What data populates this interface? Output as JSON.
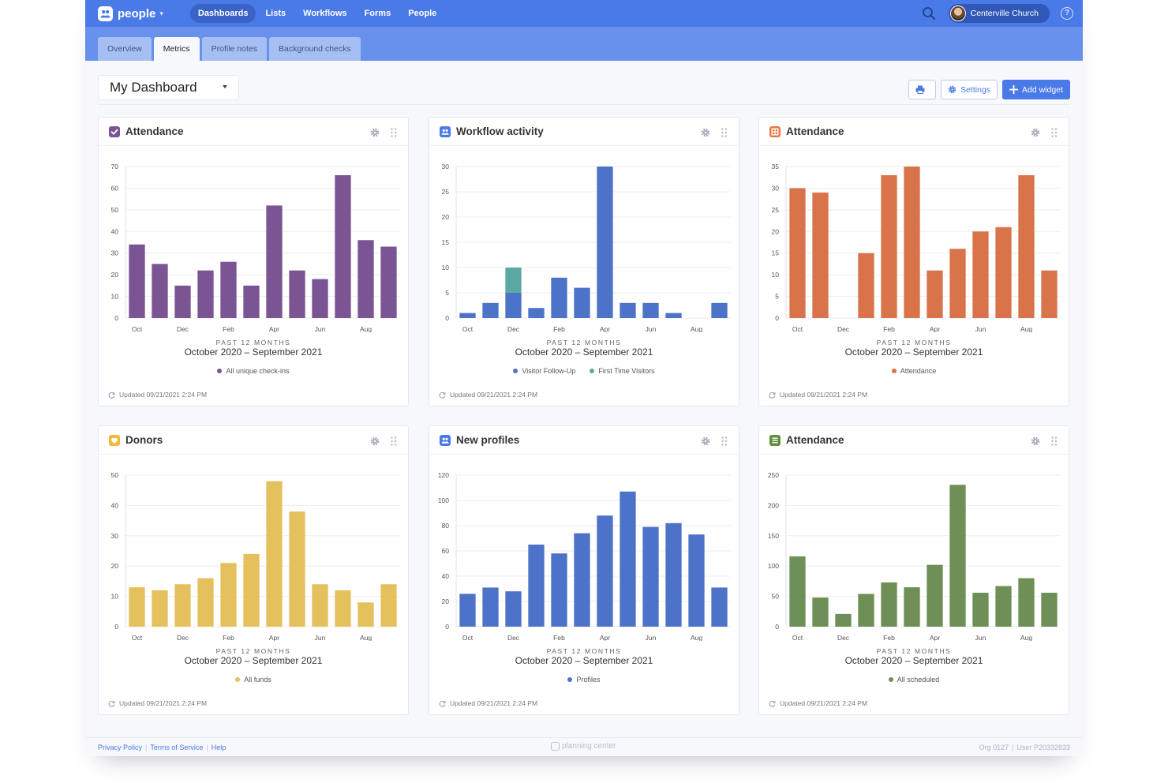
{
  "app": {
    "brand": "people",
    "nav": [
      "Dashboards",
      "Lists",
      "Workflows",
      "Forms",
      "People"
    ],
    "active_nav": 0,
    "org_name": "Centerville Church",
    "help_label": "?"
  },
  "subtabs": {
    "items": [
      "Overview",
      "Metrics",
      "Profile notes",
      "Background checks"
    ],
    "active": 1
  },
  "dashboard": {
    "title": "My Dashboard",
    "settings_label": "Settings",
    "add_widget_label": "Add widget"
  },
  "widgets": [
    {
      "title": "Attendance",
      "icon": "checkbox-icon",
      "period_label": "PAST 12 MONTHS",
      "range": "October 2020 – September 2021",
      "updated": "Updated 09/21/2021 2:24 PM",
      "legend": [
        {
          "label": "All unique check-ins",
          "color": "#7a5493"
        }
      ],
      "chart_data": {
        "type": "bar",
        "categories": [
          "Oct",
          "Nov",
          "Dec",
          "Jan",
          "Feb",
          "Mar",
          "Apr",
          "May",
          "Jun",
          "Jul",
          "Aug",
          "Sep"
        ],
        "tick_labels": [
          "Oct",
          "",
          "Dec",
          "",
          "Feb",
          "",
          "Apr",
          "",
          "Jun",
          "",
          "Aug",
          ""
        ],
        "ylim": [
          0,
          70
        ],
        "yticks": [
          0,
          10,
          20,
          30,
          40,
          50,
          60,
          70
        ],
        "series": [
          {
            "name": "All unique check-ins",
            "color": "#7a5493",
            "values": [
              34,
              25,
              15,
              22,
              26,
              15,
              52,
              22,
              18,
              66,
              36,
              33
            ]
          }
        ]
      }
    },
    {
      "title": "Workflow activity",
      "icon": "people-icon",
      "period_label": "PAST 12 MONTHS",
      "range": "October 2020 – September 2021",
      "updated": "Updated 09/21/2021 2:24 PM",
      "legend": [
        {
          "label": "Visitor Follow-Up",
          "color": "#4d73c8"
        },
        {
          "label": "First Time Visitors",
          "color": "#5aa9a4"
        }
      ],
      "chart_data": {
        "type": "bar",
        "stacked": true,
        "categories": [
          "Oct",
          "Nov",
          "Dec",
          "Jan",
          "Feb",
          "Mar",
          "Apr",
          "May",
          "Jun",
          "Jul",
          "Aug",
          "Sep"
        ],
        "tick_labels": [
          "Oct",
          "",
          "Dec",
          "",
          "Feb",
          "",
          "Apr",
          "",
          "Jun",
          "",
          "Aug",
          ""
        ],
        "ylim": [
          0,
          30
        ],
        "yticks": [
          0,
          5,
          10,
          15,
          20,
          25,
          30
        ],
        "series": [
          {
            "name": "Visitor Follow-Up",
            "color": "#4d73c8",
            "values": [
              1,
              3,
              5,
              2,
              8,
              6,
              30,
              3,
              3,
              1,
              0,
              3
            ]
          },
          {
            "name": "First Time Visitors",
            "color": "#5aa9a4",
            "values": [
              0,
              0,
              5,
              0,
              0,
              0,
              0,
              0,
              0,
              0,
              0,
              0
            ]
          }
        ]
      }
    },
    {
      "title": "Attendance",
      "icon": "grid-icon",
      "period_label": "PAST 12 MONTHS",
      "range": "October 2020 – September 2021",
      "updated": "Updated 09/21/2021 2:24 PM",
      "legend": [
        {
          "label": "Attendance",
          "color": "#d9744a"
        }
      ],
      "chart_data": {
        "type": "bar",
        "categories": [
          "Oct",
          "Nov",
          "Dec",
          "Jan",
          "Feb",
          "Mar",
          "Apr",
          "May",
          "Jun",
          "Jul",
          "Aug",
          "Sep"
        ],
        "tick_labels": [
          "Oct",
          "",
          "Dec",
          "",
          "Feb",
          "",
          "Apr",
          "",
          "Jun",
          "",
          "Aug",
          ""
        ],
        "ylim": [
          0,
          35
        ],
        "yticks": [
          0,
          5,
          10,
          15,
          20,
          25,
          30,
          35
        ],
        "series": [
          {
            "name": "Attendance",
            "color": "#d9744a",
            "values": [
              30,
              29,
              0,
              15,
              33,
              35,
              11,
              16,
              20,
              21,
              33,
              11
            ]
          }
        ]
      }
    },
    {
      "title": "Donors",
      "icon": "heart-icon",
      "period_label": "PAST 12 MONTHS",
      "range": "October 2020 – September 2021",
      "updated": "Updated 09/21/2021 2:24 PM",
      "legend": [
        {
          "label": "All funds",
          "color": "#e4c15d"
        }
      ],
      "chart_data": {
        "type": "bar",
        "categories": [
          "Oct",
          "Nov",
          "Dec",
          "Jan",
          "Feb",
          "Mar",
          "Apr",
          "May",
          "Jun",
          "Jul",
          "Aug",
          "Sep"
        ],
        "tick_labels": [
          "Oct",
          "",
          "Dec",
          "",
          "Feb",
          "",
          "Apr",
          "",
          "Jun",
          "",
          "Aug",
          ""
        ],
        "ylim": [
          0,
          50
        ],
        "yticks": [
          0,
          10,
          20,
          30,
          40,
          50
        ],
        "series": [
          {
            "name": "All funds",
            "color": "#e4c15d",
            "values": [
              13,
              12,
              14,
              16,
              21,
              24,
              48,
              38,
              14,
              12,
              8,
              14
            ]
          }
        ]
      }
    },
    {
      "title": "New profiles",
      "icon": "people-icon",
      "period_label": "PAST 12 MONTHS",
      "range": "October 2020 – September 2021",
      "updated": "Updated 09/21/2021 2:24 PM",
      "legend": [
        {
          "label": "Profiles",
          "color": "#4d73c8"
        }
      ],
      "chart_data": {
        "type": "bar",
        "categories": [
          "Oct",
          "Nov",
          "Dec",
          "Jan",
          "Feb",
          "Mar",
          "Apr",
          "May",
          "Jun",
          "Jul",
          "Aug",
          "Sep"
        ],
        "tick_labels": [
          "Oct",
          "",
          "Dec",
          "",
          "Feb",
          "",
          "Apr",
          "",
          "Jun",
          "",
          "Aug",
          ""
        ],
        "ylim": [
          0,
          120
        ],
        "yticks": [
          0,
          20,
          40,
          60,
          80,
          100,
          120
        ],
        "series": [
          {
            "name": "Profiles",
            "color": "#4d73c8",
            "values": [
              26,
              31,
              28,
              65,
              58,
              74,
              88,
              107,
              79,
              82,
              73,
              31
            ]
          }
        ]
      }
    },
    {
      "title": "Attendance",
      "icon": "list-icon",
      "period_label": "PAST 12 MONTHS",
      "range": "October 2020 – September 2021",
      "updated": "Updated 09/21/2021 2:24 PM",
      "legend": [
        {
          "label": "All scheduled",
          "color": "#6e8f55"
        }
      ],
      "chart_data": {
        "type": "bar",
        "categories": [
          "Oct",
          "Nov",
          "Dec",
          "Jan",
          "Feb",
          "Mar",
          "Apr",
          "May",
          "Jun",
          "Jul",
          "Aug",
          "Sep"
        ],
        "tick_labels": [
          "Oct",
          "",
          "Dec",
          "",
          "Feb",
          "",
          "Apr",
          "",
          "Jun",
          "",
          "Aug",
          ""
        ],
        "ylim": [
          0,
          250
        ],
        "yticks": [
          0,
          50,
          100,
          150,
          200,
          250
        ],
        "series": [
          {
            "name": "All scheduled",
            "color": "#6e8f55",
            "values": [
              116,
              48,
              21,
              54,
              73,
              65,
              102,
              234,
              56,
              67,
              80,
              56
            ]
          }
        ]
      }
    }
  ],
  "icon_colors": [
    "#7a5493",
    "#4a79e8",
    "#e8773f",
    "#f0b83e",
    "#4a79e8",
    "#5f8f3e"
  ],
  "footer": {
    "links": [
      "Privacy Policy",
      "Terms of Service",
      "Help"
    ],
    "brand": "planning center",
    "org": "Org 0127",
    "user": "User P20332833"
  }
}
